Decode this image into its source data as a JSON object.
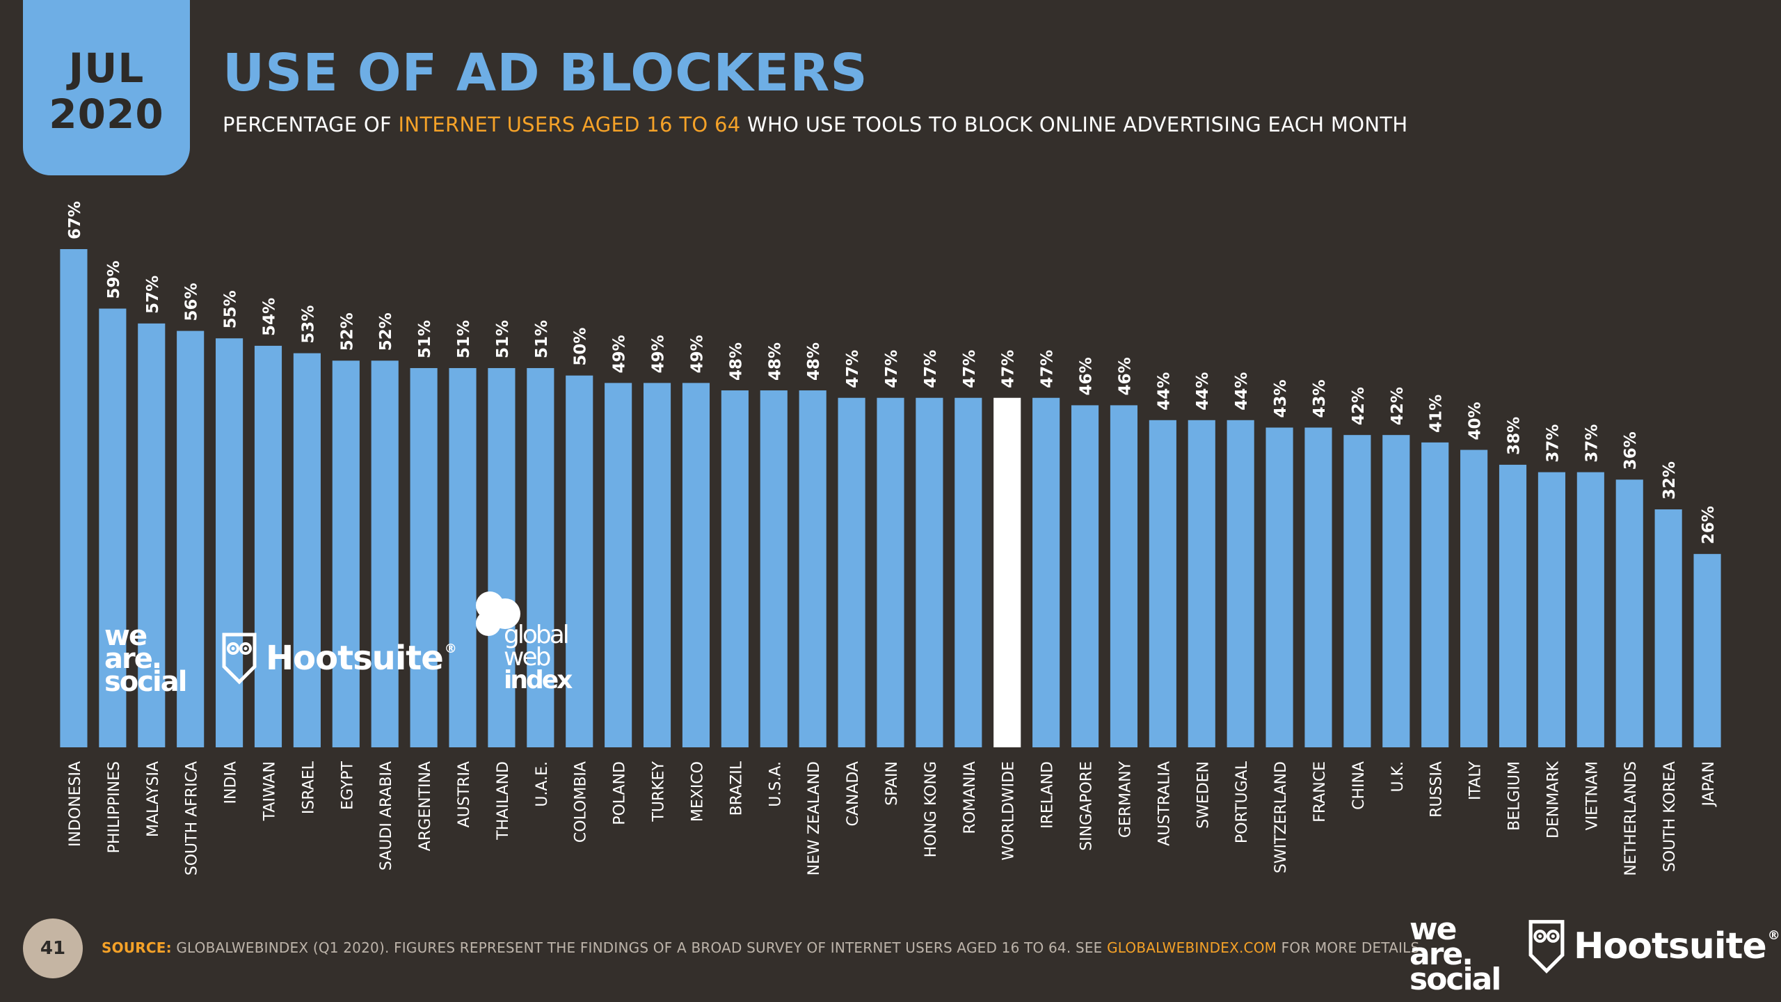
{
  "header": {
    "month": "JUL",
    "year": "2020",
    "title": "USE OF AD BLOCKERS",
    "subtitle_prefix": "PERCENTAGE OF ",
    "subtitle_highlight": "INTERNET USERS AGED 16 TO 64",
    "subtitle_suffix": " WHO USE TOOLS TO BLOCK ONLINE ADVERTISING EACH MONTH"
  },
  "chart_data": {
    "type": "bar",
    "title": "USE OF AD BLOCKERS",
    "xlabel": "",
    "ylabel": "",
    "ylim": [
      0,
      67
    ],
    "value_suffix": "%",
    "highlight_category": "WORLDWIDE",
    "categories": [
      "INDONESIA",
      "PHILIPPINES",
      "MALAYSIA",
      "SOUTH AFRICA",
      "INDIA",
      "TAIWAN",
      "ISRAEL",
      "EGYPT",
      "SAUDI ARABIA",
      "ARGENTINA",
      "AUSTRIA",
      "THAILAND",
      "U.A.E.",
      "COLOMBIA",
      "POLAND",
      "TURKEY",
      "MEXICO",
      "BRAZIL",
      "U.S.A.",
      "NEW ZEALAND",
      "CANADA",
      "SPAIN",
      "HONG KONG",
      "ROMANIA",
      "WORLDWIDE",
      "IRELAND",
      "SINGAPORE",
      "GERMANY",
      "AUSTRALIA",
      "SWEDEN",
      "PORTUGAL",
      "SWITZERLAND",
      "FRANCE",
      "CHINA",
      "U.K.",
      "RUSSIA",
      "ITALY",
      "BELGIUM",
      "DENMARK",
      "VIETNAM",
      "NETHERLANDS",
      "SOUTH KOREA",
      "JAPAN"
    ],
    "values": [
      67,
      59,
      57,
      56,
      55,
      54,
      53,
      52,
      52,
      51,
      51,
      51,
      51,
      50,
      49,
      49,
      49,
      48,
      48,
      48,
      47,
      47,
      47,
      47,
      47,
      47,
      46,
      46,
      44,
      44,
      44,
      43,
      43,
      42,
      42,
      41,
      40,
      38,
      37,
      37,
      36,
      32,
      26
    ],
    "colors": {
      "bar": "#6eaee5",
      "highlight": "#ffffff",
      "label": "#ffffff"
    }
  },
  "logos": {
    "we_are_social": [
      "we",
      "are.",
      "social"
    ],
    "hootsuite": "Hootsuite",
    "hootsuite_reg": "®",
    "gwi": [
      "global",
      "web",
      "index"
    ]
  },
  "footer": {
    "page_number": "41",
    "source_label": "SOURCE:",
    "source_text": " GLOBALWEBINDEX (Q1 2020). FIGURES REPRESENT THE FINDINGS OF A BROAD SURVEY OF INTERNET USERS AGED 16 TO 64. SEE ",
    "source_link": "GLOBALWEBINDEX.COM",
    "source_end": " FOR MORE DETAILS."
  }
}
